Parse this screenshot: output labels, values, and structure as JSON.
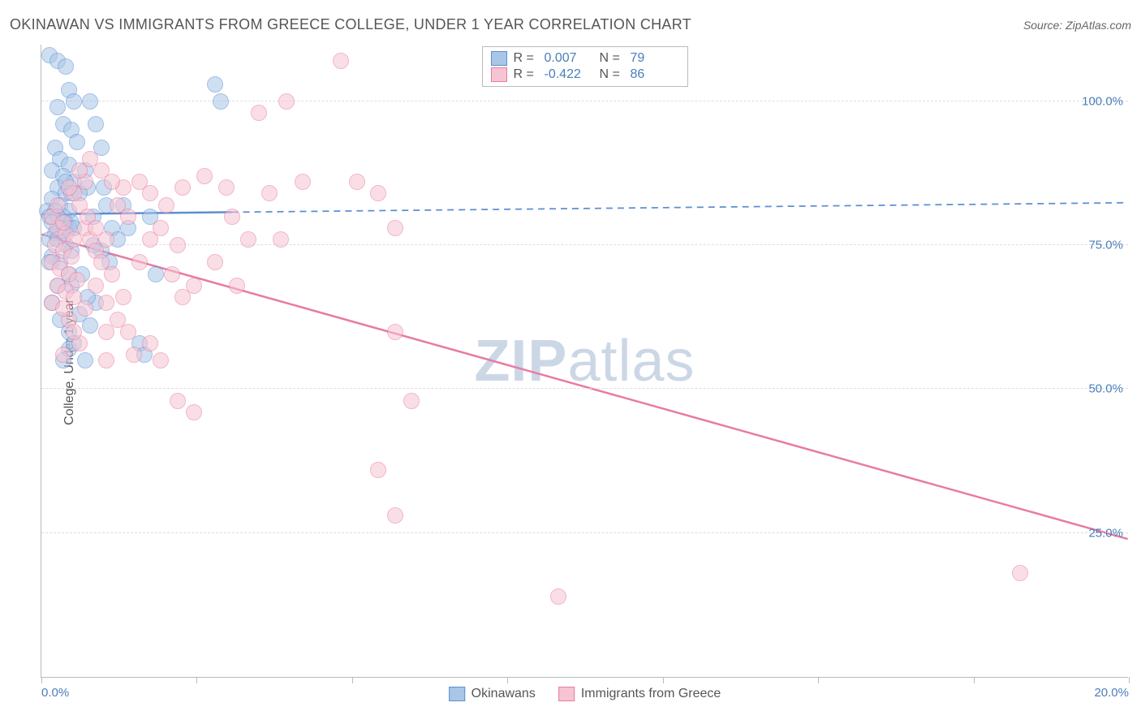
{
  "title": "OKINAWAN VS IMMIGRANTS FROM GREECE COLLEGE, UNDER 1 YEAR CORRELATION CHART",
  "source_prefix": "Source: ",
  "source_name": "ZipAtlas.com",
  "y_axis_label": "College, Under 1 year",
  "watermark_a": "ZIP",
  "watermark_b": "atlas",
  "chart": {
    "type": "scatter",
    "xlim": [
      0,
      20
    ],
    "ylim": [
      0,
      110
    ],
    "x_ticks": [
      0,
      2.857,
      5.714,
      8.571,
      11.428,
      14.285,
      17.142,
      20
    ],
    "x_tick_labels": {
      "0": "0.0%",
      "20": "20.0%"
    },
    "y_ticks": [
      25,
      50,
      75,
      100
    ],
    "y_tick_labels": {
      "25": "25.0%",
      "50": "50.0%",
      "75": "75.0%",
      "100": "100.0%"
    },
    "background_color": "#ffffff",
    "grid_color": "#dddddd",
    "axis_color": "#bbbbbb",
    "tick_label_color": "#4a7ebb",
    "title_color": "#555555",
    "title_fontsize": 18,
    "label_fontsize": 16,
    "tick_fontsize": 15,
    "marker_radius": 10,
    "marker_opacity": 0.55,
    "series": [
      {
        "name": "Okinawans",
        "fill_color": "#a8c6e8",
        "stroke_color": "#5b8fd1",
        "r_label": "R =",
        "r_value": "0.007",
        "n_label": "N =",
        "n_value": "79",
        "trend": {
          "x1": 0,
          "y1": 80.5,
          "x2": 20,
          "y2": 82.5,
          "solid_until_x": 3.5,
          "width": 2.5
        },
        "points": [
          [
            0.15,
            108
          ],
          [
            0.3,
            107
          ],
          [
            0.45,
            106
          ],
          [
            0.5,
            102
          ],
          [
            0.6,
            100
          ],
          [
            0.3,
            99
          ],
          [
            0.4,
            96
          ],
          [
            0.55,
            95
          ],
          [
            0.65,
            93
          ],
          [
            0.25,
            92
          ],
          [
            0.35,
            90
          ],
          [
            0.5,
            89
          ],
          [
            0.2,
            88
          ],
          [
            0.4,
            87
          ],
          [
            0.6,
            86
          ],
          [
            0.3,
            85
          ],
          [
            0.45,
            84
          ],
          [
            0.55,
            84
          ],
          [
            0.2,
            83
          ],
          [
            0.35,
            82
          ],
          [
            0.5,
            81
          ],
          [
            0.1,
            81
          ],
          [
            0.25,
            81
          ],
          [
            0.4,
            80
          ],
          [
            0.15,
            80
          ],
          [
            0.3,
            80
          ],
          [
            0.45,
            79
          ],
          [
            0.55,
            79
          ],
          [
            0.2,
            79
          ],
          [
            0.35,
            78
          ],
          [
            0.5,
            78
          ],
          [
            0.6,
            78
          ],
          [
            0.25,
            77
          ],
          [
            0.4,
            77
          ],
          [
            0.15,
            76
          ],
          [
            0.3,
            76
          ],
          [
            0.45,
            75
          ],
          [
            0.55,
            74
          ],
          [
            0.2,
            73
          ],
          [
            0.35,
            72
          ],
          [
            0.5,
            70
          ],
          [
            0.9,
            100
          ],
          [
            1.0,
            96
          ],
          [
            1.1,
            92
          ],
          [
            0.8,
            88
          ],
          [
            0.85,
            85
          ],
          [
            1.2,
            82
          ],
          [
            0.95,
            80
          ],
          [
            1.3,
            78
          ],
          [
            0.7,
            84
          ],
          [
            1.4,
            76
          ],
          [
            0.75,
            70
          ],
          [
            1.0,
            65
          ],
          [
            0.9,
            61
          ],
          [
            0.5,
            57
          ],
          [
            0.8,
            55
          ],
          [
            1.5,
            82
          ],
          [
            1.6,
            78
          ],
          [
            1.8,
            58
          ],
          [
            1.9,
            56
          ],
          [
            2.0,
            80
          ],
          [
            2.1,
            70
          ],
          [
            3.2,
            103
          ],
          [
            3.3,
            100
          ],
          [
            0.2,
            65
          ],
          [
            0.35,
            62
          ],
          [
            0.5,
            60
          ],
          [
            0.6,
            58
          ],
          [
            0.4,
            55
          ],
          [
            1.1,
            74
          ],
          [
            1.25,
            72
          ],
          [
            0.85,
            66
          ],
          [
            0.7,
            63
          ],
          [
            0.55,
            68
          ],
          [
            0.95,
            75
          ],
          [
            1.15,
            85
          ],
          [
            0.3,
            68
          ],
          [
            0.15,
            72
          ],
          [
            0.45,
            86
          ]
        ]
      },
      {
        "name": "Immigants from Greece",
        "display_name": "Immigrants from Greece",
        "fill_color": "#f6c4d3",
        "stroke_color": "#e87ba0",
        "r_label": "R =",
        "r_value": "-0.422",
        "n_label": "N =",
        "n_value": "86",
        "trend": {
          "x1": 0,
          "y1": 77,
          "x2": 20,
          "y2": 24,
          "solid_until_x": 20,
          "width": 2.5
        },
        "points": [
          [
            0.3,
            78
          ],
          [
            0.45,
            77
          ],
          [
            0.6,
            76
          ],
          [
            0.25,
            75
          ],
          [
            0.4,
            74
          ],
          [
            0.55,
            73
          ],
          [
            0.2,
            72
          ],
          [
            0.35,
            71
          ],
          [
            0.5,
            70
          ],
          [
            0.65,
            69
          ],
          [
            0.3,
            68
          ],
          [
            0.45,
            67
          ],
          [
            0.6,
            66
          ],
          [
            0.2,
            80
          ],
          [
            0.4,
            79
          ],
          [
            0.8,
            78
          ],
          [
            0.9,
            76
          ],
          [
            1.0,
            74
          ],
          [
            1.1,
            72
          ],
          [
            1.3,
            70
          ],
          [
            0.7,
            82
          ],
          [
            0.85,
            80
          ],
          [
            1.0,
            78
          ],
          [
            1.2,
            76
          ],
          [
            0.6,
            84
          ],
          [
            0.8,
            86
          ],
          [
            1.4,
            82
          ],
          [
            1.6,
            80
          ],
          [
            1.5,
            85
          ],
          [
            1.8,
            86
          ],
          [
            2.0,
            84
          ],
          [
            2.2,
            78
          ],
          [
            2.4,
            70
          ],
          [
            2.6,
            66
          ],
          [
            2.5,
            75
          ],
          [
            2.8,
            68
          ],
          [
            1.2,
            65
          ],
          [
            1.4,
            62
          ],
          [
            1.6,
            60
          ],
          [
            2.0,
            58
          ],
          [
            2.2,
            55
          ],
          [
            2.5,
            48
          ],
          [
            2.8,
            46
          ],
          [
            5.5,
            107
          ],
          [
            4.8,
            86
          ],
          [
            4.2,
            84
          ],
          [
            3.5,
            80
          ],
          [
            3.8,
            76
          ],
          [
            4.5,
            100
          ],
          [
            4.0,
            98
          ],
          [
            3.2,
            72
          ],
          [
            3.6,
            68
          ],
          [
            4.4,
            76
          ],
          [
            5.8,
            86
          ],
          [
            6.2,
            84
          ],
          [
            6.5,
            78
          ],
          [
            6.5,
            60
          ],
          [
            6.8,
            48
          ],
          [
            6.2,
            36
          ],
          [
            6.5,
            28
          ],
          [
            9.5,
            14
          ],
          [
            18.0,
            18
          ],
          [
            1.0,
            68
          ],
          [
            1.2,
            60
          ],
          [
            0.5,
            62
          ],
          [
            0.7,
            58
          ],
          [
            0.4,
            56
          ],
          [
            0.8,
            64
          ],
          [
            1.5,
            66
          ],
          [
            1.8,
            72
          ],
          [
            2.0,
            76
          ],
          [
            2.3,
            82
          ],
          [
            2.6,
            85
          ],
          [
            3.0,
            87
          ],
          [
            3.4,
            85
          ],
          [
            0.3,
            82
          ],
          [
            0.5,
            85
          ],
          [
            0.7,
            88
          ],
          [
            0.9,
            90
          ],
          [
            1.1,
            88
          ],
          [
            1.3,
            86
          ],
          [
            0.2,
            65
          ],
          [
            1.7,
            56
          ],
          [
            1.2,
            55
          ],
          [
            0.6,
            60
          ],
          [
            0.4,
            64
          ]
        ]
      }
    ]
  },
  "legend_bottom": [
    {
      "label": "Okinawans",
      "fill": "#a8c6e8",
      "stroke": "#5b8fd1"
    },
    {
      "label": "Immigrants from Greece",
      "fill": "#f6c4d3",
      "stroke": "#e87ba0"
    }
  ]
}
